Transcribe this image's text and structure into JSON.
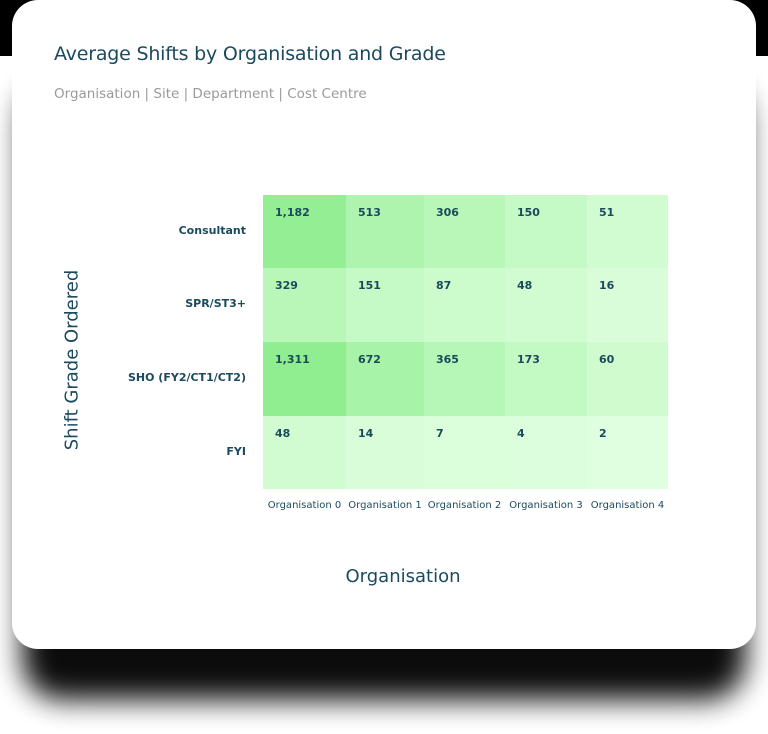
{
  "card": {
    "title": "Average Shifts by Organisation and Grade",
    "subtitle": "Organisation | Site | Department | Cost Centre"
  },
  "colors": {
    "title": "#1b4a5e",
    "subtitle": "#9a9a9a",
    "scale_low": "#e0ffe0",
    "scale_high": "#90ee90"
  },
  "chart_data": {
    "type": "heatmap",
    "title": "Average Shifts by Organisation and Grade",
    "subtitle": "Organisation | Site | Department | Cost Centre",
    "xlabel": "Organisation",
    "ylabel": "Shift Grade Ordered",
    "x": [
      "Organisation 0",
      "Organisation 1",
      "Organisation 2",
      "Organisation 3",
      "Organisation 4"
    ],
    "y": [
      "Consultant",
      "SPR/ST3+",
      "SHO (FY2/CT1/CT2)",
      "FYI"
    ],
    "values": [
      [
        1182,
        513,
        306,
        150,
        51
      ],
      [
        329,
        151,
        87,
        48,
        16
      ],
      [
        1311,
        672,
        365,
        173,
        60
      ],
      [
        48,
        14,
        7,
        4,
        2
      ]
    ],
    "labels": [
      [
        "1,182",
        "513",
        "306",
        "150",
        "51"
      ],
      [
        "329",
        "151",
        "87",
        "48",
        "16"
      ],
      [
        "1,311",
        "672",
        "365",
        "173",
        "60"
      ],
      [
        "48",
        "14",
        "7",
        "4",
        "2"
      ]
    ],
    "legend": "none",
    "grid": false
  }
}
